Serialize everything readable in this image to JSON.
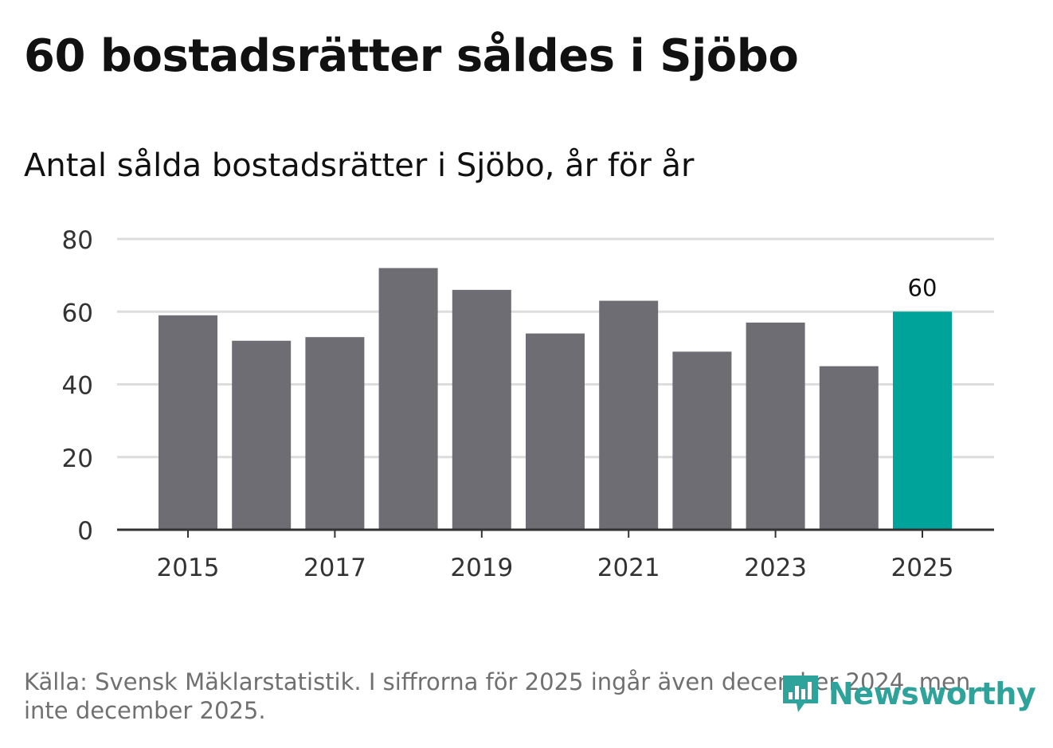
{
  "header": {
    "title": "60 bostadsrätter såldes i Sjöbo",
    "subtitle": "Antal sålda bostadsrätter i Sjöbo, år för år"
  },
  "footer": {
    "source": "Källa: Svensk Mäklarstatistik. I siffrorna för 2025 ingår även december 2024, men inte december 2025.",
    "brand": "Newsworthy"
  },
  "colors": {
    "bar": "#6e6d74",
    "highlight": "#00a39a",
    "grid": "#dddddd",
    "axis": "#333333",
    "brand": "#2ea39b"
  },
  "chart_data": {
    "type": "bar",
    "categories": [
      "2015",
      "2016",
      "2017",
      "2018",
      "2019",
      "2020",
      "2021",
      "2022",
      "2023",
      "2024",
      "2025"
    ],
    "values": [
      59,
      52,
      53,
      72,
      66,
      54,
      63,
      49,
      57,
      45,
      60
    ],
    "x_tick_labels": [
      "2015",
      "2017",
      "2019",
      "2021",
      "2023",
      "2025"
    ],
    "y_ticks": [
      0,
      20,
      40,
      60,
      80
    ],
    "ylim": [
      0,
      80
    ],
    "highlight_index": 10,
    "data_labels": [
      {
        "index": 10,
        "text": "60"
      }
    ],
    "xlabel": "",
    "ylabel": ""
  }
}
